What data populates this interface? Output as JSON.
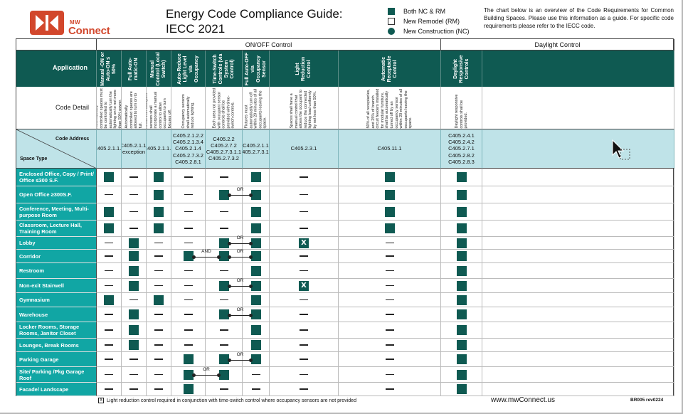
{
  "brand": {
    "small": "MW",
    "name": "Connect"
  },
  "title": {
    "line1": "Energy Code Compliance Guide:",
    "line2": "IECC 2021"
  },
  "legend": [
    {
      "label": "Both NC & RM",
      "shape": "filled-square"
    },
    {
      "label": "New Remodel (RM)",
      "shape": "empty-square"
    },
    {
      "label": "New Construction (NC)",
      "shape": "filled-circle"
    }
  ],
  "intro": "The chart below is an overview of the Code Requirements for Common Building Spaces. Please use this information as a guide. For specific code requirements please refer to the IECC code.",
  "sections": {
    "onoff": "ON/OFF Control",
    "daylight": "Daylight Control"
  },
  "row_labels": {
    "application": "Application",
    "code_detail": "Code Detail",
    "code_address": "Code Address",
    "space_type": "Space Type"
  },
  "columns": [
    {
      "header": "Manual -ON or Auto-ON ≤ 50%",
      "detail": "Automatically controlled spaces must be controlled to automatically turn the lighting on to not more than 50% power.",
      "address": "C405.2.1.1.2"
    },
    {
      "header": "Full Auto-matic-ON",
      "detail": "Automatically controlled spaces are allowed to turn on to full.",
      "address": "C405.2.1.1, exception"
    },
    {
      "header": "Manual Control (Local Switch)",
      "detail": "Areas with occupant sensors shall incorporate a manual control to allow occupants to turn fixtures off.",
      "address": "C405.2.1.1.3"
    },
    {
      "header": "Auto-Reduce Light Level via Occupancy",
      "detail": "Occupancy sensors shall automatically reduce lighting.",
      "address": "C405.2.1.2.2\nC405.2.1.3.4\nC405.2.1.4\nC405.2.7.3.2\nC405.2.8.1"
    },
    {
      "header": "Time-Switch Controls (via System Control)",
      "detail": "Each area not provided with occupant sensor controls shall be provided with time-switch controls.",
      "address": "C405.2.2\nC405.2.7.2\nC405.2.7.3.1.1\nC405.2.7.3.2"
    },
    {
      "header": "Full Auto-OFF via Occupancy Sensor",
      "detail": "Fixtures must automatically turn off within 20 minutes of all occupants leaving the space.",
      "address": "C405.2.1.1\nC405.2.7.3.1.3"
    },
    {
      "header": "Light Reduction Control",
      "detail": "Spaces shall have a manual control that allows the occupant to reduce the connected lighting load uniformly by not less than 50%.",
      "address": "C405.2.3.1"
    },
    {
      "header": "Automatic Receptacle Control",
      "detail": "50% of all receptacles, and 25% of branch circuit feeders installed for modular furniture, shall be automatically turned off by an occupancy sensor within 20 minutes of all occupants leaving the space.",
      "address": "C405.11.1"
    },
    {
      "header": "Daylight Responsive Controls",
      "detail": "Daylight responsive controls shall be provided.",
      "address": "C405.2.4.1\nC405.2.4.2\nC405.2.7.1\nC405.2.8.2\nC405.2.8.3"
    }
  ],
  "rows": [
    {
      "label": "Enclosed Office, Copy / Print/ Office ≤300 S.F.",
      "marks": [
        "F",
        "-",
        "F",
        "-",
        "-",
        "F",
        "-",
        "F",
        "F"
      ]
    },
    {
      "label": "Open Office ≥300S.F.",
      "marks": [
        "-",
        "-",
        "F",
        "-",
        "F",
        "F",
        "-",
        "F",
        "F"
      ],
      "conn": {
        "from": 4,
        "to": 5,
        "text": "OR"
      }
    },
    {
      "label": "Conference, Meeting, Multi-purpose Room",
      "marks": [
        "F",
        "-",
        "F",
        "-",
        "-",
        "F",
        "-",
        "F",
        "F"
      ]
    },
    {
      "label": "Classroom, Lecture Hall, Training Room",
      "marks": [
        "F",
        "-",
        "F",
        "-",
        "-",
        "F",
        "-",
        "F",
        "F"
      ]
    },
    {
      "label": "Lobby",
      "marks": [
        "-",
        "F",
        "-",
        "-",
        "F",
        "F",
        "X",
        "-",
        "F"
      ],
      "conn": {
        "from": 4,
        "to": 5,
        "text": "OR"
      }
    },
    {
      "label": "Corridor",
      "marks": [
        "-",
        "F",
        "-",
        "F",
        "F",
        "F",
        "-",
        "-",
        "F"
      ],
      "conn": {
        "from": 4,
        "to": 5,
        "text": "OR"
      },
      "conn2": {
        "from": 3,
        "to": 4,
        "text": "AND"
      }
    },
    {
      "label": "Restroom",
      "marks": [
        "-",
        "F",
        "-",
        "-",
        "-",
        "F",
        "-",
        "-",
        "F"
      ]
    },
    {
      "label": "Non-exit Stairwell",
      "marks": [
        "-",
        "F",
        "-",
        "-",
        "F",
        "F",
        "X",
        "-",
        "F"
      ],
      "conn": {
        "from": 4,
        "to": 5,
        "text": "OR"
      }
    },
    {
      "label": "Gymnasium",
      "marks": [
        "F",
        "-",
        "F",
        "-",
        "-",
        "F",
        "-",
        "-",
        "F"
      ]
    },
    {
      "label": "Warehouse",
      "marks": [
        "-",
        "F",
        "-",
        "-",
        "F",
        "F",
        "-",
        "-",
        "F"
      ],
      "conn": {
        "from": 4,
        "to": 5,
        "text": "OR"
      }
    },
    {
      "label": "Locker Rooms, Storage Rooms, Janitor Closet",
      "marks": [
        "-",
        "F",
        "-",
        "-",
        "-",
        "F",
        "-",
        "-",
        "F"
      ]
    },
    {
      "label": "Lounges, Break Rooms",
      "marks": [
        "-",
        "F",
        "-",
        "-",
        "-",
        "F",
        "-",
        "-",
        "F"
      ]
    },
    {
      "label": "Parking Garage",
      "marks": [
        "-",
        "-",
        "-",
        "F",
        "F",
        "F",
        "-",
        "-",
        "F"
      ],
      "conn": {
        "from": 4,
        "to": 5,
        "text": "OR"
      }
    },
    {
      "label": "Site/ Parking /Pkg Garage Roof",
      "marks": [
        "-",
        "-",
        "-",
        "F",
        "F",
        "-",
        "-",
        "-",
        "F"
      ],
      "conn": {
        "from": 3,
        "to": 4,
        "text": "OR"
      }
    },
    {
      "label": "Facade/ Landscape",
      "marks": [
        "-",
        "-",
        "-",
        "F",
        "-",
        "-",
        "-",
        "-",
        "F"
      ]
    }
  ],
  "footnote": "Light reduction control required in conjunction with time-switch control where occupancy sensors are not provided",
  "footnote_mark": "X",
  "website": "www.mwConnect.us",
  "revision": "BR005 rev0224",
  "colors": {
    "teal_dark": "#0f5a52",
    "teal_row": "#11a6a4",
    "addr_bg": "#bfe3e8",
    "brand": "#d2472c"
  }
}
